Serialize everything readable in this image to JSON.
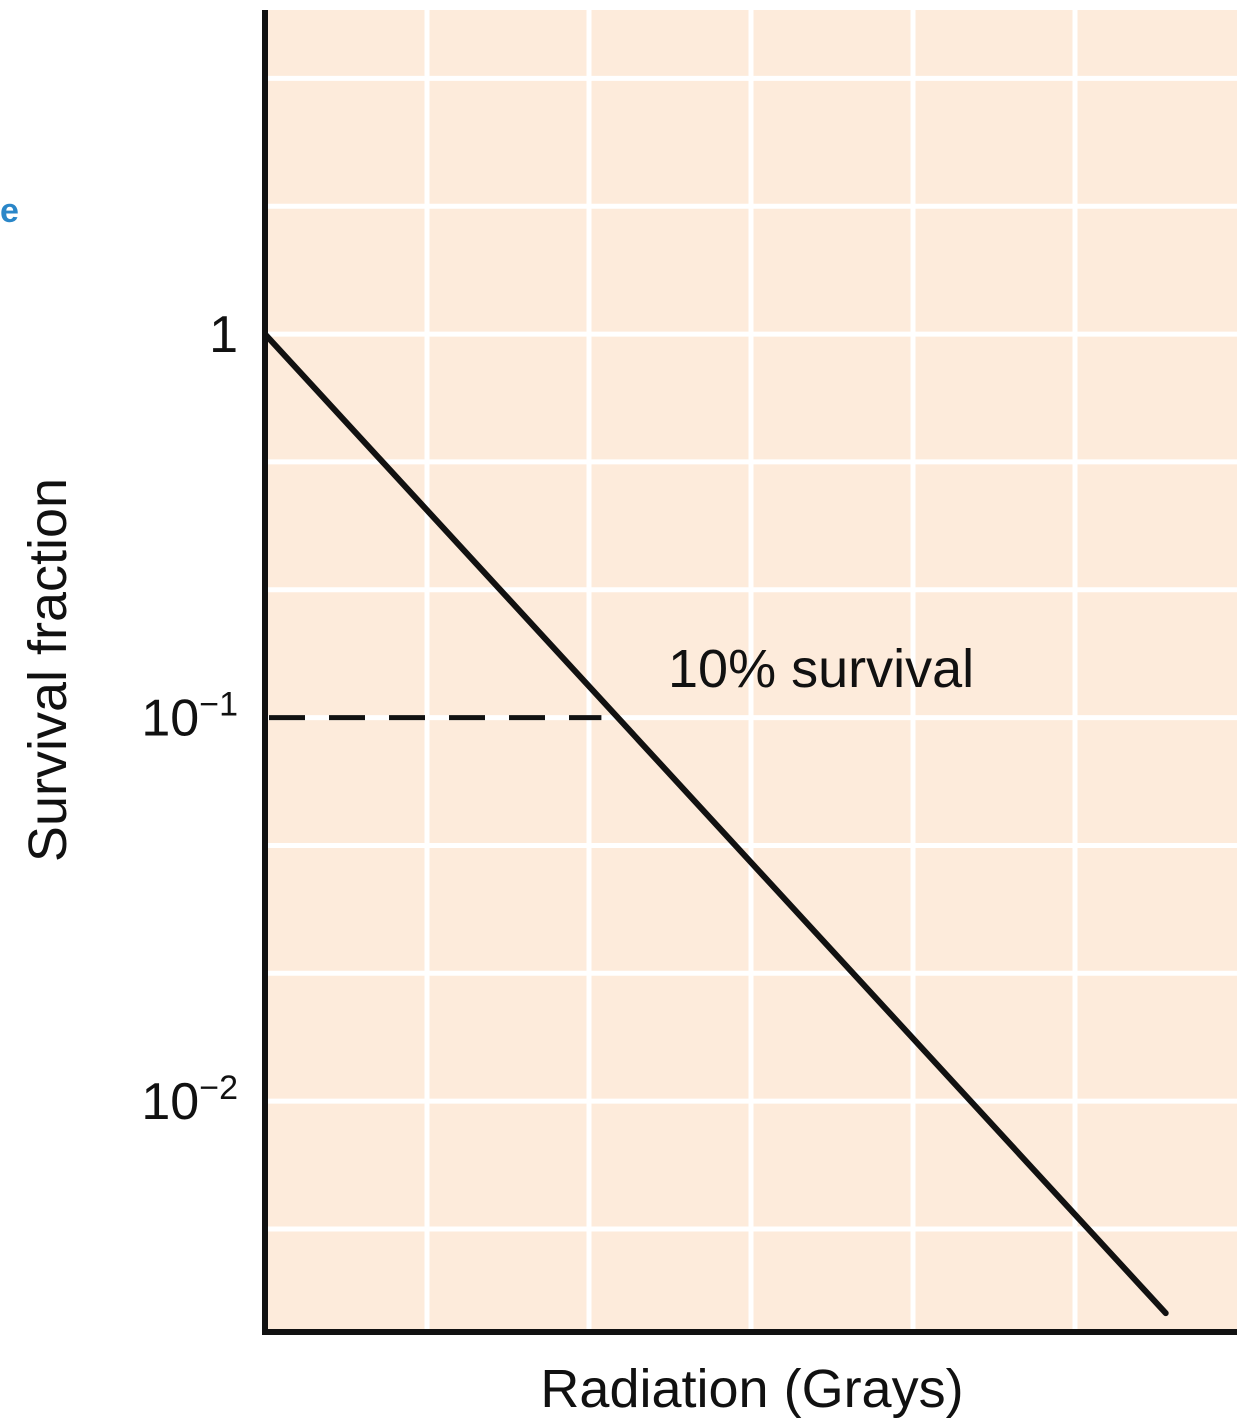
{
  "colors": {
    "plot_background": "#fdebdb",
    "grid": "#ffffff",
    "line": "#111111",
    "cropped_text": "#2a86c8"
  },
  "cropped_text": "e",
  "chart_data": {
    "type": "line",
    "title": "",
    "xlabel": "Radiation (Grays)",
    "ylabel": "Survival fraction",
    "y_scale": "log",
    "xlim": [
      0,
      6
    ],
    "ylim": [
      0.0025,
      7
    ],
    "x_tick_labels": [],
    "y_ticks": [
      {
        "value": 1,
        "label": "1",
        "sup": ""
      },
      {
        "value": 0.1,
        "label": "10",
        "sup": "−1"
      },
      {
        "value": 0.01,
        "label": "10",
        "sup": "−2"
      }
    ],
    "grid": true,
    "series": [
      {
        "x": [
          0,
          5.56
        ],
        "y": [
          1,
          0.0028
        ]
      }
    ],
    "annotations": [
      {
        "text": "10% survival",
        "x": 2.2,
        "y": 0.1
      }
    ],
    "reference_line": {
      "style": "dashed",
      "x": [
        0,
        2.2
      ],
      "y": [
        0.1,
        0.1
      ]
    }
  }
}
